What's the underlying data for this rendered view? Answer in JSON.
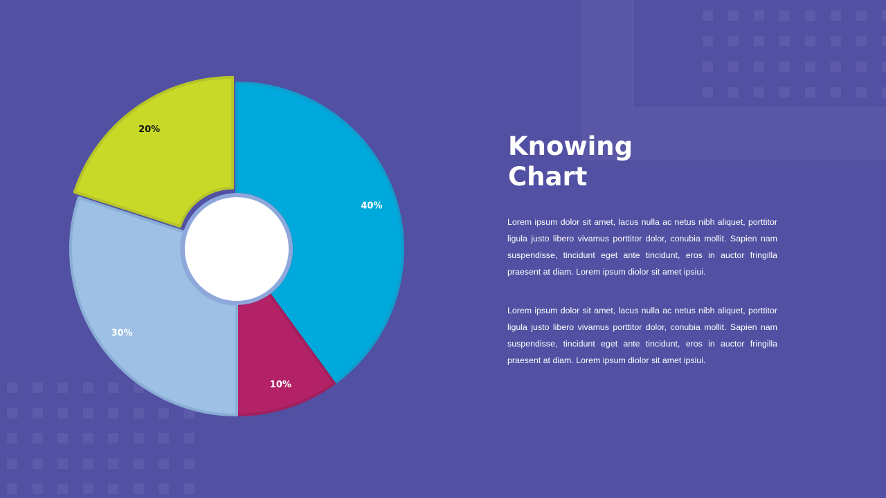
{
  "slide": {
    "title_line1": "Knowing",
    "title_line2": "Chart",
    "paragraphs": [
      "Lorem ipsum dolor sit amet, lacus nulla ac netus nibh aliquet, porttitor ligula justo libero vivamus porttitor dolor, conubia mollit. Sapien nam suspendisse, tincidunt eget ante tincidunt, eros in auctor fringilla praesent at diam. Lorem ipsum diolor sit amet ipsiui.",
      "Lorem ipsum dolor sit amet, lacus nulla ac netus nibh aliquet, porttitor ligula justo libero vivamus porttitor dolor, conubia mollit. Sapien nam suspendisse, tincidunt eget ante tincidunt, eros in auctor fringilla praesent at diam. Lorem ipsum diolor sit amet ipsiui."
    ]
  },
  "colors": {
    "background": "#5150a2",
    "center": "#ffffff",
    "ring": "#8fa8dc"
  },
  "chart_data": {
    "type": "pie",
    "variant": "donut",
    "start": "top, clockwise",
    "slices": [
      {
        "value": 40,
        "label": "40%",
        "color": "#00a9db",
        "stroke": "#119cce",
        "label_color": "#ffffff",
        "exploded": false
      },
      {
        "value": 10,
        "label": "10%",
        "color": "#b32267",
        "stroke": "#a11f5e",
        "label_color": "#ffffff",
        "exploded": false
      },
      {
        "value": 30,
        "label": "30%",
        "color": "#9dc0e4",
        "stroke": "#8aaed6",
        "label_color": "#ffffff",
        "exploded": false
      },
      {
        "value": 20,
        "label": "20%",
        "color": "#c8d928",
        "stroke": "#b6c52a",
        "label_color": "#111111",
        "exploded": true
      }
    ]
  }
}
